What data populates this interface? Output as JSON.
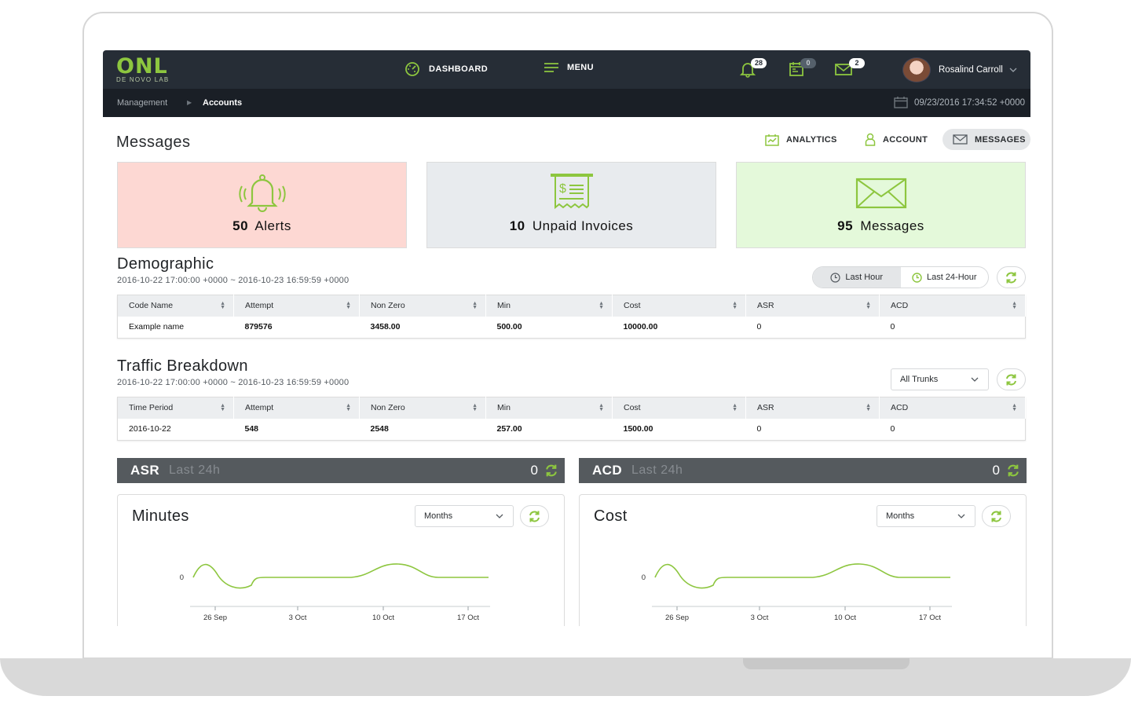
{
  "header": {
    "logo_mark": "ONL",
    "logo_sub": "DE NOVO LAB",
    "nav": {
      "dashboard": "DASHBOARD",
      "menu": "MENU"
    },
    "notifications": {
      "alerts": "28",
      "calendar": "0",
      "messages": "2"
    },
    "user": {
      "name": "Rosalind Carroll"
    }
  },
  "breadcrumb": {
    "parent": "Management",
    "current": "Accounts",
    "datetime": "09/23/2016 17:34:52 +0000"
  },
  "page": {
    "title": "Messages",
    "tabs": {
      "analytics": "ANALYTICS",
      "account": "ACCOUNT",
      "messages": "MESSAGES"
    }
  },
  "cards": {
    "alerts": {
      "count": "50",
      "label": "Alerts"
    },
    "invoices": {
      "count": "10",
      "label": "Unpaid Invoices"
    },
    "messages": {
      "count": "95",
      "label": "Messages"
    }
  },
  "demographic": {
    "title": "Demographic",
    "range": "2016-10-22 17:00:00 +0000 ~ 2016-10-23 16:59:59 +0000",
    "filters": {
      "last_hour": "Last Hour",
      "last_24": "Last 24-Hour"
    },
    "columns": [
      "Code Name",
      "Attempt",
      "Non Zero",
      "Min",
      "Cost",
      "ASR",
      "ACD"
    ],
    "rows": [
      [
        "Example name",
        "879576",
        "3458.00",
        "500.00",
        "10000.00",
        "0",
        "0"
      ]
    ]
  },
  "traffic": {
    "title": "Traffic Breakdown",
    "range": "2016-10-22 17:00:00 +0000 ~ 2016-10-23 16:59:59 +0000",
    "trunk_select": "All Trunks",
    "columns": [
      "Time Period",
      "Attempt",
      "Non Zero",
      "Min",
      "Cost",
      "ASR",
      "ACD"
    ],
    "rows": [
      [
        "2016-10-22",
        "548",
        "2548",
        "257.00",
        "1500.00",
        "0",
        "0"
      ]
    ]
  },
  "kpis": {
    "asr": {
      "name": "ASR",
      "sub": "Last 24h",
      "value": "0"
    },
    "acd": {
      "name": "ACD",
      "sub": "Last 24h",
      "value": "0"
    }
  },
  "charts": {
    "minutes": {
      "title": "Minutes",
      "period": "Months"
    },
    "cost": {
      "title": "Cost",
      "period": "Months"
    }
  },
  "chart_data": [
    {
      "type": "line",
      "title": "Minutes",
      "x_ticks": [
        "26 Sep",
        "3 Oct",
        "10 Oct",
        "17 Oct"
      ],
      "y_ticks": [
        "0"
      ],
      "color": "#8dc63f",
      "grid": false
    },
    {
      "type": "line",
      "title": "Cost",
      "x_ticks": [
        "26 Sep",
        "3 Oct",
        "10 Oct",
        "17 Oct"
      ],
      "y_ticks": [
        "0"
      ],
      "color": "#8dc63f",
      "grid": false
    }
  ],
  "colors": {
    "accent": "#8dc63f",
    "topbar": "#262d36",
    "subbar": "#1a1f26",
    "kpi_bar": "#555a5e",
    "alert_card": "#fdd8d3",
    "invoice_card": "#e8ebee",
    "message_card": "#e4f9da"
  },
  "icons": [
    "dashboard-icon",
    "menu-icon",
    "bell-icon",
    "calendar-icon",
    "envelope-icon",
    "analytics-icon",
    "account-icon",
    "refresh-icon",
    "clock-icon",
    "receipt-icon"
  ]
}
